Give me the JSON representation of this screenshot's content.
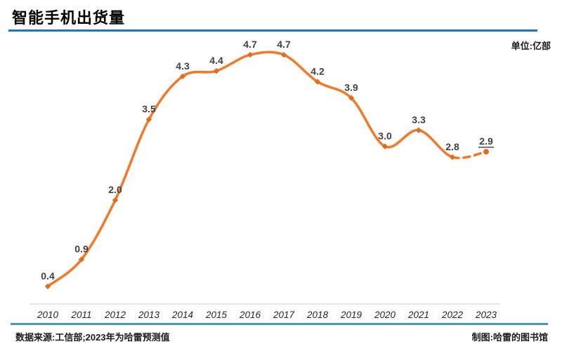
{
  "header": {
    "title": "智能手机出货量",
    "unit_label": "单位:亿部"
  },
  "footer": {
    "source": "数据来源:工信部;2023年为哈雷预测值",
    "credit": "制图:哈雷的图书馆"
  },
  "chart_data": {
    "type": "line",
    "title": "智能手机出货量",
    "unit": "亿部",
    "x": [
      2010,
      2011,
      2012,
      2013,
      2014,
      2015,
      2016,
      2017,
      2018,
      2019,
      2020,
      2021,
      2022,
      2023
    ],
    "series": [
      {
        "name": "智能手机出货量",
        "values": [
          0.4,
          0.9,
          2.0,
          3.5,
          4.3,
          4.4,
          4.7,
          4.7,
          4.2,
          3.9,
          3.0,
          3.3,
          2.8,
          2.9
        ]
      }
    ],
    "dashed_segment_x": [
      2022,
      2023
    ],
    "predicted_label_underlined": "2.9",
    "ylim": [
      0,
      5
    ],
    "grid": "off",
    "legend": "none",
    "smoothed": true,
    "colors": {
      "line": "#ed7c2f",
      "marker": "#e06f1d",
      "data_label": "#404040",
      "axis_line": "#d9d9d9",
      "tick_label": "#262626",
      "title_rule": "#2176b4",
      "footer_rule": "#4d96bb"
    }
  }
}
